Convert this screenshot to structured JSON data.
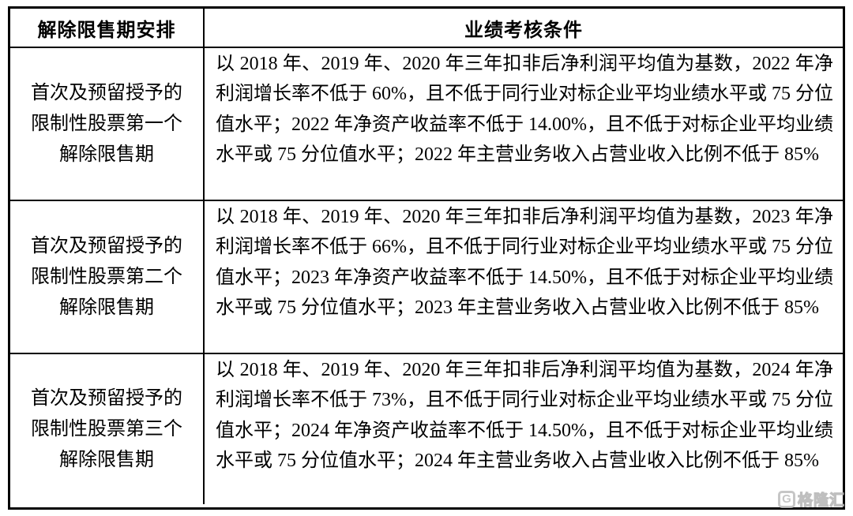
{
  "table": {
    "headers": [
      "解除限售期安排",
      "业绩考核条件"
    ],
    "rows": [
      {
        "period_lines": [
          "首次及预留授予的",
          "限制性股票第一个",
          "解除限售期"
        ],
        "condition": "以 2018 年、2019 年、2020 年三年扣非后净利润平均值为基数，2022 年净利润增长率不低于 60%，且不低于同行业对标企业平均业绩水平或 75 分位值水平；2022 年净资产收益率不低于 14.00%，且不低于对标企业平均业绩水平或 75 分位值水平；2022 年主营业务收入占营业收入比例不低于 85%"
      },
      {
        "period_lines": [
          "首次及预留授予的",
          "限制性股票第二个",
          "解除限售期"
        ],
        "condition": "以 2018 年、2019 年、2020 年三年扣非后净利润平均值为基数，2023 年净利润增长率不低于 66%，且不低于同行业对标企业平均业绩水平或 75 分位值水平；2023 年净资产收益率不低于 14.50%，且不低于对标企业平均业绩水平或 75 分位值水平；2023 年主营业务收入占营业收入比例不低于 85%"
      },
      {
        "period_lines": [
          "首次及预留授予的",
          "限制性股票第三个",
          "解除限售期"
        ],
        "condition": "以 2018 年、2019 年、2020 年三年扣非后净利润平均值为基数，2024 年净利润增长率不低于 73%，且不低于同行业对标企业平均业绩水平或 75 分位值水平；2024 年净资产收益率不低于 14.50%，且不低于对标企业平均业绩水平或 75 分位值水平；2024 年主营业务收入占营业收入比例不低于 85%"
      }
    ]
  },
  "watermark": {
    "logo": "G",
    "text": "格隆汇"
  },
  "colors": {
    "background": "#ffffff",
    "border": "#000000",
    "text": "#000000",
    "watermark_gray": "#bdbdbd"
  }
}
